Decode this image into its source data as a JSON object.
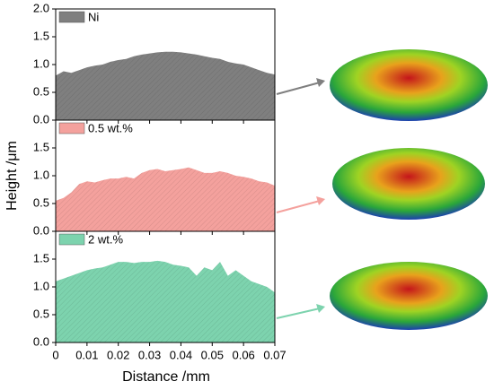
{
  "shared": {
    "xlabel": "Distance /mm",
    "ylabel": "Height /μm",
    "x": [
      0,
      0.0025,
      0.005,
      0.0075,
      0.01,
      0.0125,
      0.015,
      0.0175,
      0.02,
      0.0225,
      0.025,
      0.0275,
      0.03,
      0.0325,
      0.035,
      0.0375,
      0.04,
      0.0425,
      0.045,
      0.0475,
      0.05,
      0.0525,
      0.055,
      0.0575,
      0.06,
      0.0625,
      0.065,
      0.0675,
      0.07
    ],
    "xlim": [
      0,
      0.07
    ],
    "xticks": [
      0,
      0.01,
      0.02,
      0.03,
      0.04,
      0.05,
      0.06,
      0.07
    ]
  },
  "chart_data": [
    {
      "type": "area",
      "ylim": [
        0,
        2
      ],
      "yticks": [
        {
          "value": 0,
          "label": "0.0"
        },
        0.5,
        {
          "value": 1,
          "label": "1.0"
        },
        1.5,
        {
          "value": 2,
          "label": "2.0"
        }
      ],
      "series": [
        {
          "name": "Ni",
          "color": "#7f7f7f",
          "values": [
            0.8,
            0.88,
            0.85,
            0.9,
            0.95,
            0.98,
            1.0,
            1.05,
            1.08,
            1.1,
            1.15,
            1.18,
            1.2,
            1.22,
            1.23,
            1.23,
            1.22,
            1.2,
            1.18,
            1.15,
            1.12,
            1.1,
            1.05,
            1.02,
            1.0,
            0.95,
            0.9,
            0.85,
            0.82
          ]
        }
      ]
    },
    {
      "type": "area",
      "ylim": [
        0,
        2
      ],
      "yticks": [
        {
          "value": 0,
          "label": "0.0"
        },
        0.5,
        {
          "value": 1,
          "label": "1.0"
        },
        1.5
      ],
      "series": [
        {
          "name": "0.5 wt.%",
          "color": "#f4a19d",
          "values": [
            0.55,
            0.6,
            0.7,
            0.85,
            0.9,
            0.88,
            0.92,
            0.95,
            0.95,
            0.98,
            0.95,
            1.05,
            1.1,
            1.12,
            1.08,
            1.1,
            1.12,
            1.15,
            1.1,
            1.05,
            1.05,
            1.08,
            1.05,
            1.0,
            0.98,
            0.95,
            0.9,
            0.88,
            0.82
          ]
        }
      ]
    },
    {
      "type": "area",
      "ylim": [
        0,
        2
      ],
      "yticks": [
        {
          "value": 0,
          "label": "0.0"
        },
        0.5,
        {
          "value": 1,
          "label": "1.0"
        },
        1.5
      ],
      "series": [
        {
          "name": "2 wt.%",
          "color": "#7dd3ae",
          "values": [
            1.1,
            1.15,
            1.2,
            1.25,
            1.3,
            1.33,
            1.35,
            1.4,
            1.45,
            1.45,
            1.43,
            1.45,
            1.45,
            1.47,
            1.45,
            1.4,
            1.38,
            1.35,
            1.2,
            1.35,
            1.3,
            1.45,
            1.2,
            1.3,
            1.2,
            1.1,
            1.05,
            1.0,
            0.9
          ]
        }
      ]
    }
  ]
}
